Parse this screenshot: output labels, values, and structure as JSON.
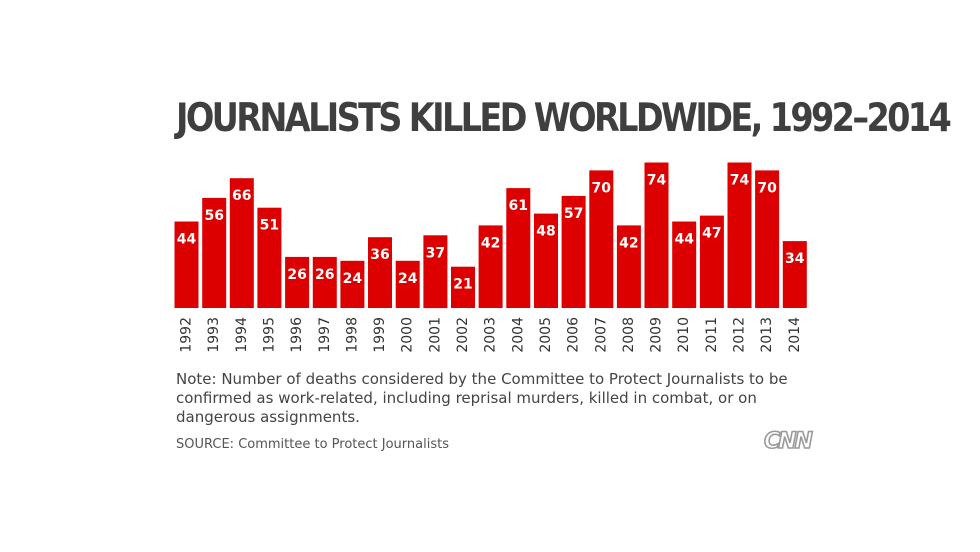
{
  "header": {
    "title": "JOURNALISTS KILLED WORLDWIDE, 1992–2014"
  },
  "footer": {
    "note": "Note: Number of deaths considered by the Committee to Protect Journalists to be confirmed as work-related, including reprisal murders, killed in combat, or on dangerous assignments.",
    "source": "SOURCE: Committee to Protect Journalists",
    "logo": "CNN"
  },
  "colors": {
    "bar": "#dd0000",
    "label": "#ffffff",
    "axis_text": "#333333"
  },
  "chart_data": {
    "type": "bar",
    "title": "JOURNALISTS KILLED WORLDWIDE, 1992–2014",
    "xlabel": "",
    "ylabel": "",
    "categories": [
      "1992",
      "1993",
      "1994",
      "1995",
      "1996",
      "1997",
      "1998",
      "1999",
      "2000",
      "2001",
      "2002",
      "2003",
      "2004",
      "2005",
      "2006",
      "2007",
      "2008",
      "2009",
      "2010",
      "2011",
      "2012",
      "2013",
      "2014"
    ],
    "values": [
      44,
      56,
      66,
      51,
      26,
      26,
      24,
      36,
      24,
      37,
      21,
      42,
      61,
      48,
      57,
      70,
      42,
      74,
      44,
      47,
      74,
      70,
      34
    ],
    "ylim": [
      0,
      80
    ],
    "grid": false,
    "legend": "none",
    "data_labels": true
  }
}
